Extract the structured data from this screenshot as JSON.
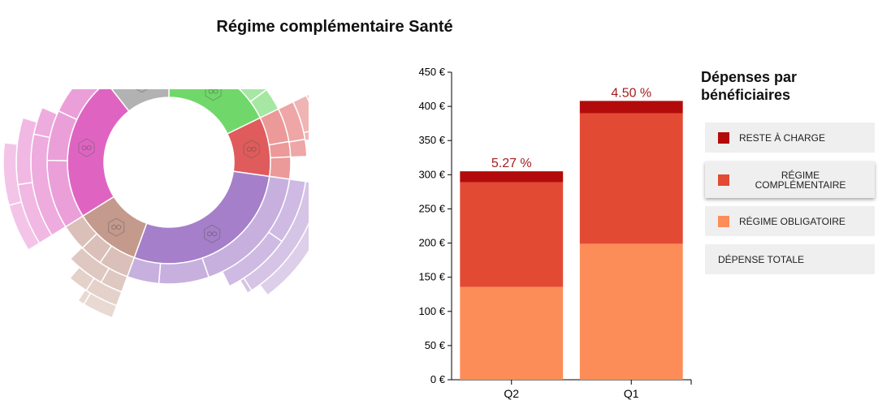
{
  "title": "Régime complémentaire Santé",
  "legend": {
    "title": "Dépenses par bénéficiaires",
    "items": [
      {
        "label": "RESTE À CHARGE",
        "color": "#b30b0b"
      },
      {
        "label": "RÉGIME COMPLÉMENTAIRE",
        "color": "#e34a33"
      },
      {
        "label": "RÉGIME OBLIGATOIRE",
        "color": "#fc8d59"
      },
      {
        "label": "DÉPENSE TOTALE",
        "color": ""
      }
    ]
  },
  "chart_data": [
    {
      "type": "bar",
      "stacked": true,
      "categories": [
        "Q2",
        "Q1"
      ],
      "yticks": [
        "0 €",
        "50 €",
        "100 €",
        "150 €",
        "200 €",
        "250 €",
        "300 €",
        "350 €",
        "400 €",
        "450 €"
      ],
      "ylim": [
        0,
        450
      ],
      "series": [
        {
          "name": "RÉGIME OBLIGATOIRE",
          "color": "#fc8d59",
          "values": [
            136,
            199
          ]
        },
        {
          "name": "RÉGIME COMPLÉMENTAIRE",
          "color": "#e34a33",
          "values": [
            153,
            191
          ]
        },
        {
          "name": "RESTE À CHARGE",
          "color": "#b30b0b",
          "values": [
            16,
            18
          ]
        }
      ],
      "annotations": [
        "5.27 %",
        "4.50 %"
      ]
    },
    {
      "type": "sunburst",
      "segments": [
        {
          "color": "#70d86a",
          "start": 0,
          "end": 64
        },
        {
          "color": "#e05b5b",
          "start": 64,
          "end": 98
        },
        {
          "color": "#a57fc9",
          "start": 98,
          "end": 200
        },
        {
          "color": "#c49a8c",
          "start": 200,
          "end": 238
        },
        {
          "color": "#df64c2",
          "start": 238,
          "end": 322
        },
        {
          "color": "#b2b2b2",
          "start": 322,
          "end": 360
        }
      ]
    }
  ]
}
